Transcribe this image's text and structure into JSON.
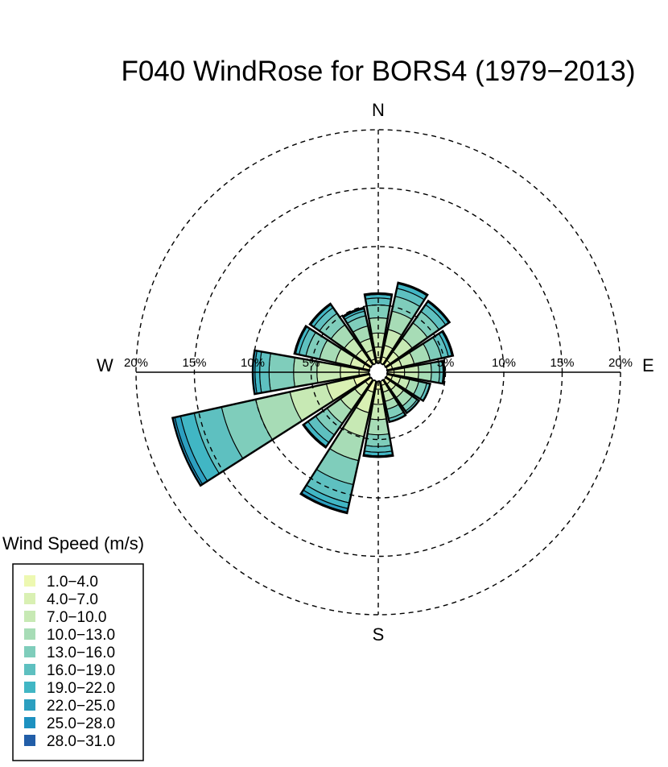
{
  "chart_data": {
    "type": "windrose",
    "title": "F040 WindRose for BORS4 (1979−2013)",
    "compass_labels": {
      "north": "N",
      "east": "E",
      "south": "S",
      "west": "W"
    },
    "radial_unit": "%",
    "radial_rings": [
      5,
      10,
      15,
      20
    ],
    "ring_labels": [
      "5%",
      "10%",
      "15%",
      "20%"
    ],
    "calm_circle": true,
    "legend": {
      "title": "Wind Speed (m/s)",
      "bins": [
        "1.0−4.0",
        "4.0−7.0",
        "7.0−10.0",
        "10.0−13.0",
        "13.0−16.0",
        "16.0−19.0",
        "19.0−22.0",
        "22.0−25.0",
        "25.0−28.0",
        "28.0−31.0"
      ],
      "colors": [
        "#edf8b1",
        "#d9f0b3",
        "#c7e9b4",
        "#a7dcb6",
        "#7fcdbb",
        "#5ec0c0",
        "#41b6c4",
        "#2c9fc0",
        "#1d91c0",
        "#225ea8"
      ]
    },
    "directions": [
      {
        "angle": 0,
        "cumulative": [
          0.5,
          1.4,
          2.6,
          3.9,
          5.0,
          5.6,
          5.9,
          6.0
        ]
      },
      {
        "angle": 22.5,
        "cumulative": [
          0.6,
          1.6,
          3.0,
          4.6,
          5.9,
          6.6,
          7.0,
          7.1
        ]
      },
      {
        "angle": 45,
        "cumulative": [
          0.5,
          1.4,
          2.8,
          4.4,
          5.6,
          6.3,
          6.6,
          6.7
        ]
      },
      {
        "angle": 67.5,
        "cumulative": [
          0.5,
          1.3,
          2.4,
          3.8,
          4.8,
          5.4,
          5.7,
          5.8
        ]
      },
      {
        "angle": 90,
        "cumulative": [
          0.6,
          1.5,
          2.7,
          3.8,
          4.5,
          4.8,
          4.9
        ]
      },
      {
        "angle": 112.5,
        "cumulative": [
          0.5,
          1.2,
          2.0,
          2.8,
          3.5,
          3.8
        ]
      },
      {
        "angle": 135,
        "cumulative": [
          0.5,
          1.1,
          1.9,
          2.8,
          3.3,
          3.5
        ]
      },
      {
        "angle": 157.5,
        "cumulative": [
          0.4,
          1.0,
          1.8,
          2.5,
          3.3,
          3.6
        ]
      },
      {
        "angle": 180,
        "cumulative": [
          0.7,
          2.0,
          3.3,
          4.6,
          5.6,
          6.1,
          6.4,
          6.5
        ]
      },
      {
        "angle": 202.5,
        "cumulative": [
          1.0,
          2.8,
          4.9,
          7.0,
          9.1,
          10.7,
          11.2,
          11.5,
          11.6
        ]
      },
      {
        "angle": 225,
        "cumulative": [
          0.6,
          1.7,
          3.2,
          4.6,
          5.8,
          6.6,
          7.0,
          7.1
        ]
      },
      {
        "angle": 247.5,
        "cumulative": [
          1.4,
          3.8,
          7.0,
          10.0,
          13.0,
          15.4,
          16.6,
          17.1,
          17.3
        ]
      },
      {
        "angle": 270,
        "cumulative": [
          0.9,
          2.5,
          4.5,
          6.5,
          8.6,
          9.4,
          9.8,
          10.0
        ]
      },
      {
        "angle": 292.5,
        "cumulative": [
          0.6,
          1.7,
          3.0,
          4.4,
          5.6,
          6.2,
          6.5,
          6.6
        ]
      },
      {
        "angle": 315,
        "cumulative": [
          0.6,
          1.6,
          2.8,
          4.2,
          5.4,
          6.0,
          6.3,
          6.4
        ]
      },
      {
        "angle": 337.5,
        "cumulative": [
          0.4,
          1.2,
          2.2,
          3.3,
          4.2,
          4.6,
          4.8,
          4.9
        ]
      }
    ]
  }
}
